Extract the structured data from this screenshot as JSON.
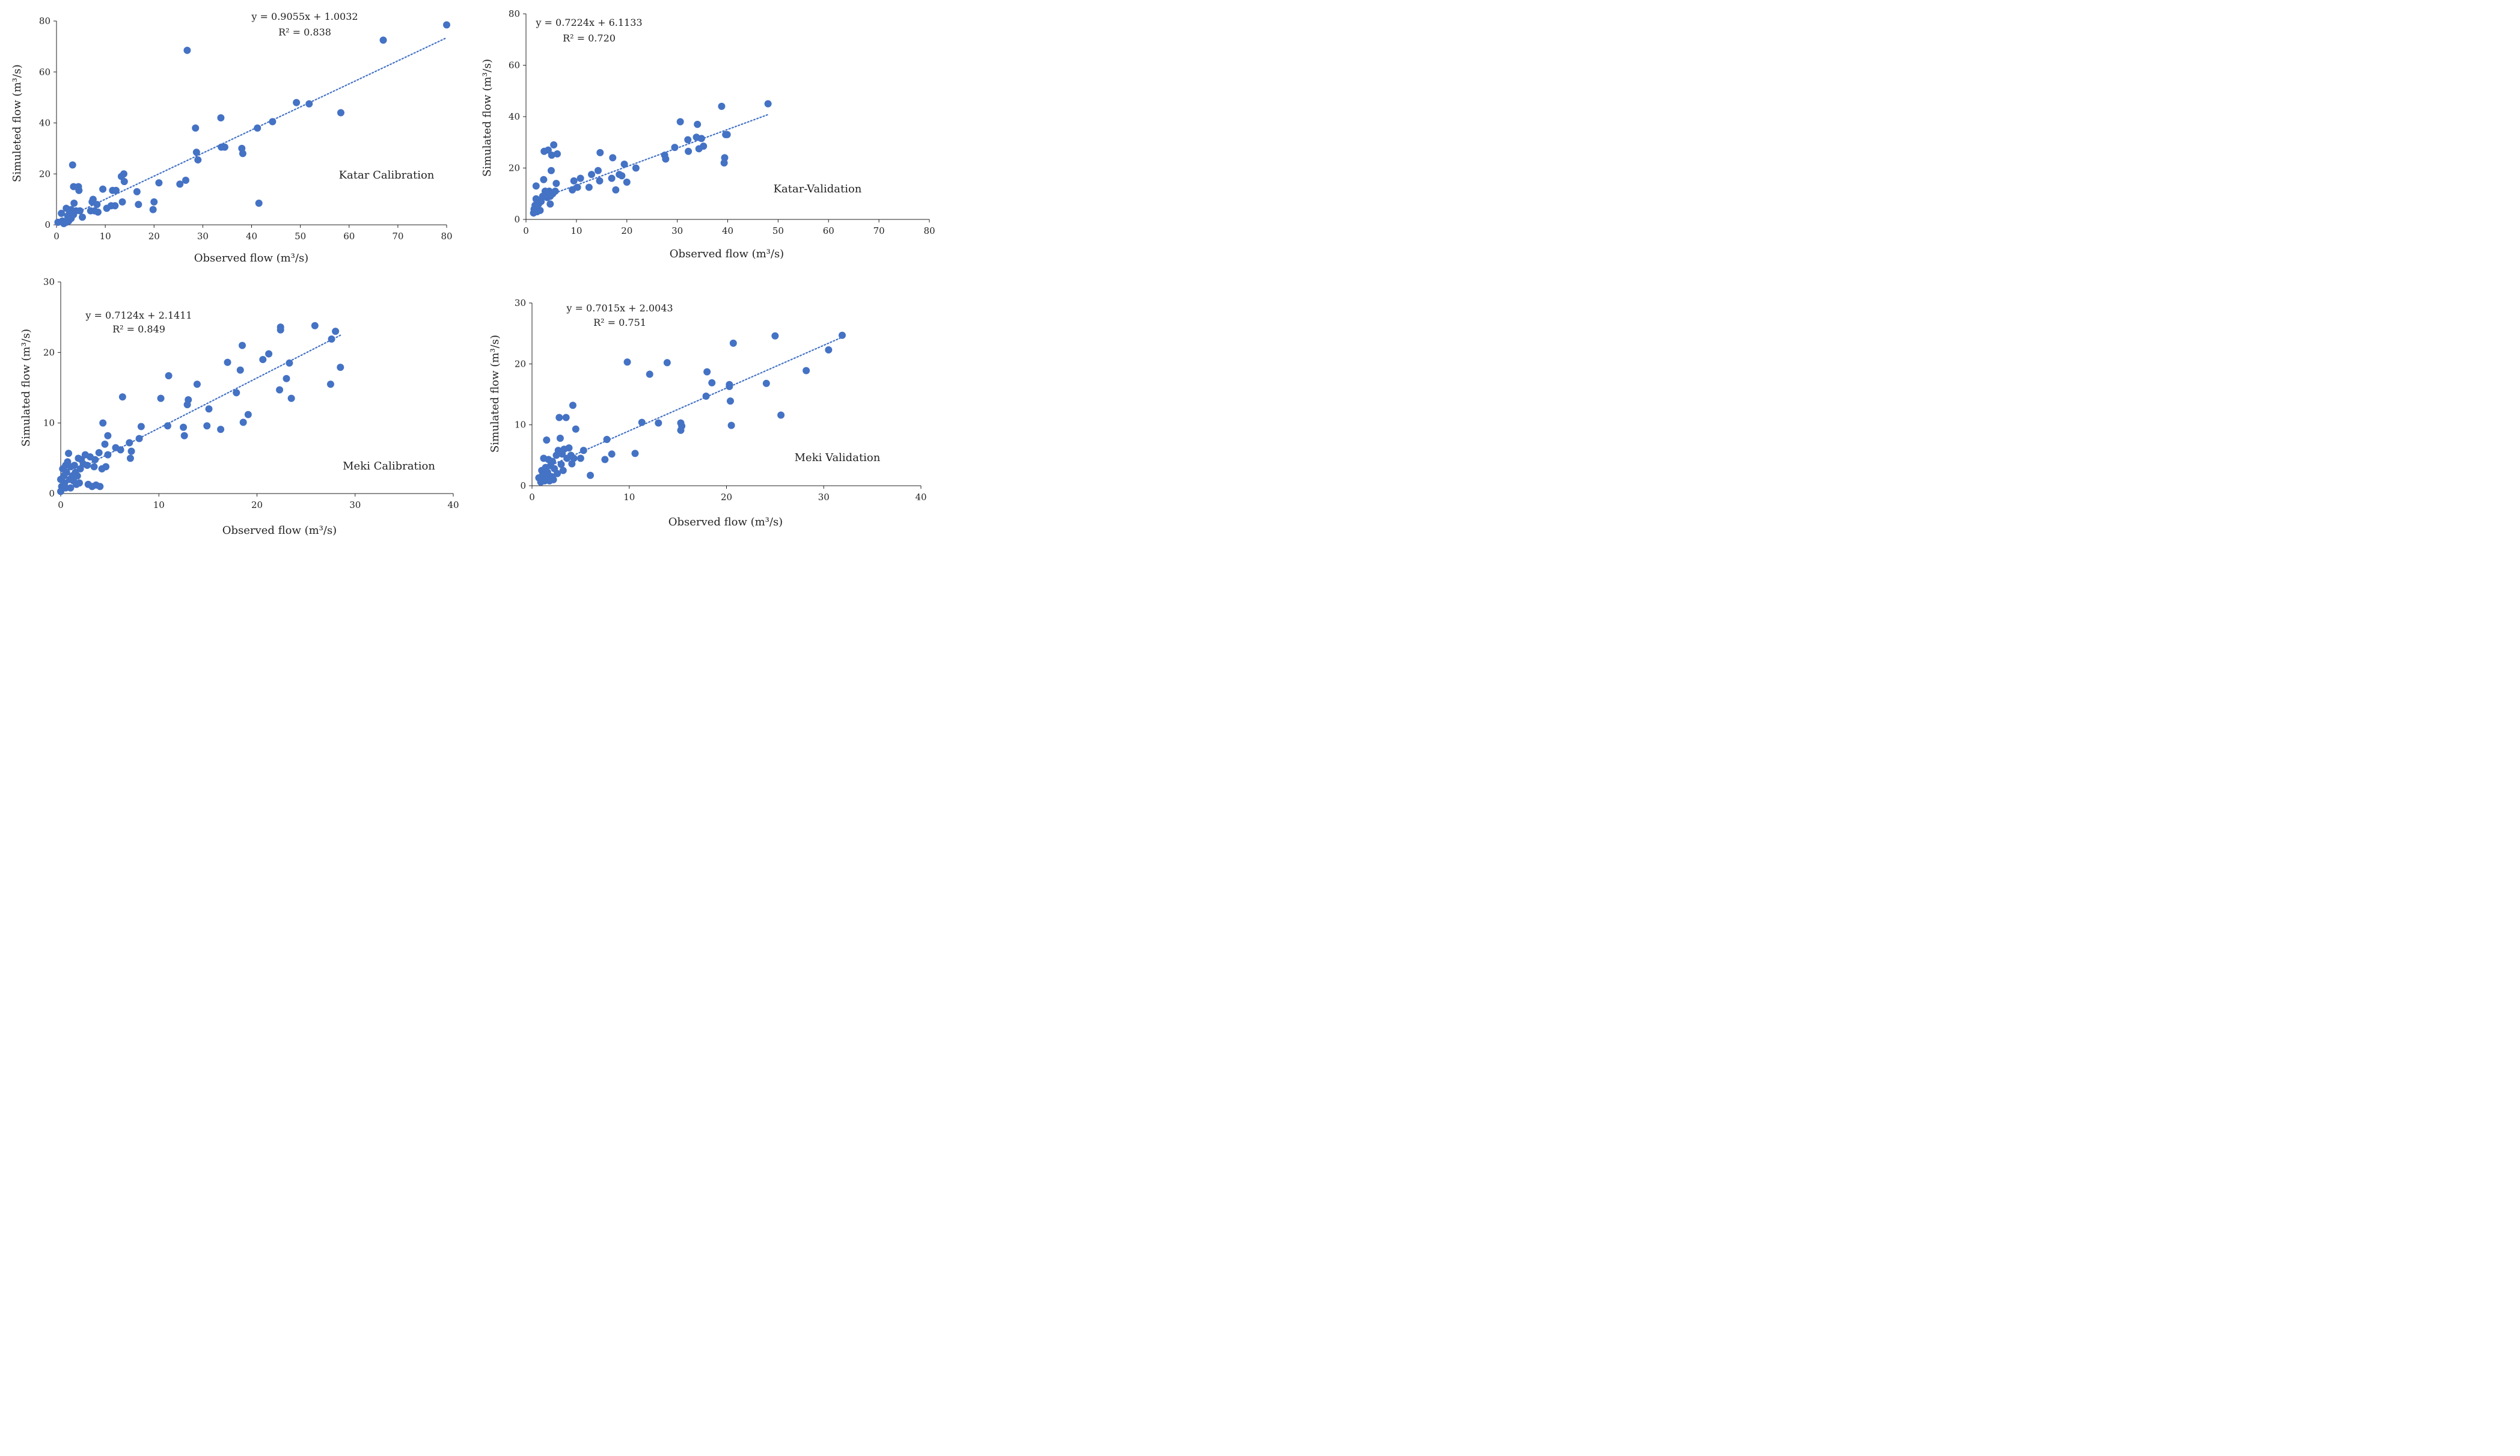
{
  "chart_data": [
    {
      "id": "katar-calibration",
      "type": "scatter",
      "title": "Katar Calibration",
      "xlabel": "Observed flow (m³/s)",
      "ylabel": "Simuleted flow (m³/s)",
      "xlim": [
        0,
        80
      ],
      "ylim": [
        0,
        80
      ],
      "xticks": [
        0,
        10,
        20,
        30,
        40,
        50,
        60,
        70,
        80
      ],
      "yticks": [
        0,
        20,
        40,
        60,
        80
      ],
      "equation": "y = 0.9055x + 1.0032",
      "r2": "R² = 0.838",
      "trendline": {
        "slope": 0.9055,
        "intercept": 1.0032,
        "x_range": [
          1,
          80
        ]
      },
      "points": [
        [
          0.3,
          1
        ],
        [
          1,
          4.5
        ],
        [
          1.2,
          1.5
        ],
        [
          1.5,
          0.5
        ],
        [
          2,
          1
        ],
        [
          2,
          6.5
        ],
        [
          2.3,
          3.5
        ],
        [
          2.5,
          1.5
        ],
        [
          2.7,
          5
        ],
        [
          3,
          2.5
        ],
        [
          3,
          6
        ],
        [
          3.3,
          23.5
        ],
        [
          3.5,
          4
        ],
        [
          3.5,
          15
        ],
        [
          3.6,
          8.5
        ],
        [
          4,
          5.5
        ],
        [
          4.5,
          15
        ],
        [
          4.6,
          13.5
        ],
        [
          4.8,
          5.5
        ],
        [
          5.3,
          3
        ],
        [
          7,
          5.5
        ],
        [
          7.3,
          9
        ],
        [
          7.5,
          10
        ],
        [
          7.8,
          5.5
        ],
        [
          8.3,
          8
        ],
        [
          8.5,
          5
        ],
        [
          9.5,
          14
        ],
        [
          10.3,
          6.5
        ],
        [
          11.2,
          7.5
        ],
        [
          11.5,
          13.5
        ],
        [
          12,
          7.5
        ],
        [
          12.2,
          13.5
        ],
        [
          13.3,
          19
        ],
        [
          13.5,
          9
        ],
        [
          13.8,
          20
        ],
        [
          13.9,
          17
        ],
        [
          16.5,
          13
        ],
        [
          16.8,
          8
        ],
        [
          19.8,
          6
        ],
        [
          20,
          9
        ],
        [
          21,
          16.5
        ],
        [
          25.3,
          16
        ],
        [
          26.5,
          17.5
        ],
        [
          26.8,
          68.5
        ],
        [
          28.5,
          38
        ],
        [
          28.7,
          28.5
        ],
        [
          29,
          25.5
        ],
        [
          33.7,
          42
        ],
        [
          33.8,
          30.5
        ],
        [
          34.5,
          30.5
        ],
        [
          38,
          30
        ],
        [
          38.2,
          28
        ],
        [
          41.2,
          38
        ],
        [
          41.5,
          8.5
        ],
        [
          44.3,
          40.5
        ],
        [
          49.2,
          48
        ],
        [
          51.8,
          47.5
        ],
        [
          58.3,
          44
        ],
        [
          67,
          72.5
        ],
        [
          80,
          78.5
        ]
      ]
    },
    {
      "id": "katar-validation",
      "type": "scatter",
      "title": "Katar-Validation",
      "xlabel": "Observed flow (m³/s)",
      "ylabel": "Simulated flow (m³/s)",
      "xlim": [
        0,
        80
      ],
      "ylim": [
        0,
        80
      ],
      "xticks": [
        0,
        10,
        20,
        30,
        40,
        50,
        60,
        70,
        80
      ],
      "yticks": [
        0,
        20,
        40,
        60,
        80
      ],
      "equation": "y = 0.7224x + 6.1133",
      "r2": "R² = 0.720",
      "trendline": {
        "slope": 0.7224,
        "intercept": 6.1133,
        "x_range": [
          1.5,
          48
        ]
      },
      "points": [
        [
          1.5,
          2.5
        ],
        [
          1.6,
          4
        ],
        [
          1.8,
          5.5
        ],
        [
          2,
          13
        ],
        [
          2,
          8
        ],
        [
          2.2,
          3
        ],
        [
          2.5,
          6
        ],
        [
          2.8,
          3.5
        ],
        [
          3,
          7
        ],
        [
          3.3,
          9
        ],
        [
          3.5,
          15.5
        ],
        [
          3.6,
          26.5
        ],
        [
          3.8,
          11
        ],
        [
          4,
          10
        ],
        [
          4.2,
          8.5
        ],
        [
          4.4,
          27
        ],
        [
          4.6,
          11
        ],
        [
          4.8,
          9
        ],
        [
          5,
          19
        ],
        [
          5.1,
          25
        ],
        [
          5.3,
          10
        ],
        [
          5.5,
          29
        ],
        [
          5.8,
          11
        ],
        [
          6,
          14
        ],
        [
          6.2,
          25.5
        ],
        [
          4.8,
          6
        ],
        [
          9.2,
          11.5
        ],
        [
          9.5,
          15
        ],
        [
          10.2,
          12.5
        ],
        [
          10.8,
          16
        ],
        [
          12.5,
          12.5
        ],
        [
          13,
          17.5
        ],
        [
          14.3,
          19
        ],
        [
          14.6,
          15
        ],
        [
          14.7,
          26
        ],
        [
          17,
          16
        ],
        [
          17.2,
          24
        ],
        [
          17.8,
          11.5
        ],
        [
          18.5,
          17.5
        ],
        [
          19,
          17
        ],
        [
          19.5,
          21.5
        ],
        [
          20,
          14.5
        ],
        [
          21.8,
          20
        ],
        [
          27.5,
          25
        ],
        [
          27.7,
          23.5
        ],
        [
          29.5,
          28
        ],
        [
          30.6,
          38
        ],
        [
          32.1,
          31
        ],
        [
          32.2,
          26.5
        ],
        [
          33.8,
          32
        ],
        [
          34,
          37
        ],
        [
          34.3,
          27.5
        ],
        [
          34.8,
          31.5
        ],
        [
          35.2,
          28.5
        ],
        [
          38.8,
          44
        ],
        [
          39.3,
          22
        ],
        [
          39.4,
          24
        ],
        [
          39.6,
          33
        ],
        [
          39.9,
          33
        ],
        [
          48,
          45
        ]
      ]
    },
    {
      "id": "meki-calibration",
      "type": "scatter",
      "title": "Meki Calibration",
      "xlabel": "Observed flow (m³/s)",
      "ylabel": "Simulated flow (m³/s)",
      "xlim": [
        0,
        40
      ],
      "ylim": [
        0,
        30
      ],
      "xticks": [
        0,
        10,
        20,
        30,
        40
      ],
      "yticks": [
        0,
        10,
        20,
        30
      ],
      "equation": "y = 0.7124x + 2.1411",
      "r2": "R² = 0.849",
      "trendline": {
        "slope": 0.7124,
        "intercept": 2.1411,
        "x_range": [
          0.2,
          28.5
        ]
      },
      "points": [
        [
          0,
          0.3
        ],
        [
          0,
          2
        ],
        [
          0.1,
          1
        ],
        [
          0.2,
          3.5
        ],
        [
          0.3,
          2.5
        ],
        [
          0.4,
          1.5
        ],
        [
          0.5,
          4
        ],
        [
          0.5,
          0.8
        ],
        [
          0.6,
          3
        ],
        [
          0.7,
          4.5
        ],
        [
          0.8,
          5.7
        ],
        [
          0.9,
          2
        ],
        [
          1,
          0.8
        ],
        [
          1,
          3.8
        ],
        [
          1.2,
          2.5
        ],
        [
          1.3,
          1.8
        ],
        [
          1.4,
          4
        ],
        [
          1.5,
          3
        ],
        [
          1.6,
          1.3
        ],
        [
          1.7,
          2.5
        ],
        [
          1.8,
          5
        ],
        [
          1.9,
          1.5
        ],
        [
          2,
          3.5
        ],
        [
          2.1,
          4.8
        ],
        [
          2.3,
          4.2
        ],
        [
          2.5,
          5.5
        ],
        [
          2.7,
          4
        ],
        [
          2.8,
          1.3
        ],
        [
          3,
          5.2
        ],
        [
          3.2,
          1
        ],
        [
          3.4,
          3.8
        ],
        [
          3.5,
          4.8
        ],
        [
          3.6,
          1.2
        ],
        [
          3.9,
          5.8
        ],
        [
          4,
          1
        ],
        [
          4.2,
          3.5
        ],
        [
          4.3,
          10
        ],
        [
          4.5,
          7
        ],
        [
          4.6,
          3.8
        ],
        [
          4.8,
          8.2
        ],
        [
          4.8,
          5.5
        ],
        [
          5.6,
          6.5
        ],
        [
          6.1,
          6.2
        ],
        [
          6.3,
          13.7
        ],
        [
          7,
          7.2
        ],
        [
          7.1,
          5
        ],
        [
          7.2,
          6
        ],
        [
          8,
          7.8
        ],
        [
          8.2,
          9.5
        ],
        [
          10.2,
          13.5
        ],
        [
          10.9,
          9.6
        ],
        [
          11,
          16.7
        ],
        [
          12.5,
          9.4
        ],
        [
          12.6,
          8.2
        ],
        [
          12.9,
          12.6
        ],
        [
          13,
          13.3
        ],
        [
          13.9,
          15.5
        ],
        [
          14.9,
          9.6
        ],
        [
          15.1,
          12
        ],
        [
          16.3,
          9.1
        ],
        [
          17,
          18.6
        ],
        [
          17.9,
          14.3
        ],
        [
          18.3,
          17.5
        ],
        [
          18.5,
          21
        ],
        [
          18.6,
          10.1
        ],
        [
          19.1,
          11.2
        ],
        [
          20.6,
          19
        ],
        [
          21.2,
          19.8
        ],
        [
          22.3,
          14.7
        ],
        [
          22.4,
          23.2
        ],
        [
          22.4,
          23.6
        ],
        [
          23,
          16.3
        ],
        [
          23.3,
          18.5
        ],
        [
          23.5,
          13.5
        ],
        [
          25.9,
          23.8
        ],
        [
          27.5,
          15.5
        ],
        [
          27.6,
          21.9
        ],
        [
          28,
          23
        ],
        [
          28.5,
          17.9
        ]
      ]
    },
    {
      "id": "meki-validation",
      "type": "scatter",
      "title": "Meki Validation",
      "xlabel": "Observed flow (m³/s)",
      "ylabel": "Simulated flow (m³/s)",
      "xlim": [
        0,
        40
      ],
      "ylim": [
        0,
        30
      ],
      "xticks": [
        0,
        10,
        20,
        30,
        40
      ],
      "yticks": [
        0,
        10,
        20,
        30
      ],
      "equation": "y = 0.7015x + 2.0043",
      "r2": "R² = 0.751",
      "trendline": {
        "slope": 0.7015,
        "intercept": 2.0043,
        "x_range": [
          0.8,
          32
        ]
      },
      "points": [
        [
          0.7,
          1.3
        ],
        [
          0.9,
          0.6
        ],
        [
          1,
          2.5
        ],
        [
          1.1,
          1.8
        ],
        [
          1.2,
          4.5
        ],
        [
          1.3,
          0.8
        ],
        [
          1.4,
          3
        ],
        [
          1.5,
          7.5
        ],
        [
          1.5,
          1.5
        ],
        [
          1.6,
          2.2
        ],
        [
          1.7,
          4.3
        ],
        [
          1.8,
          0.8
        ],
        [
          1.9,
          3.3
        ],
        [
          2,
          1.5
        ],
        [
          2.1,
          4
        ],
        [
          2.2,
          1
        ],
        [
          2.3,
          2.8
        ],
        [
          2.5,
          5
        ],
        [
          2.6,
          2
        ],
        [
          2.7,
          5.8
        ],
        [
          2.8,
          11.2
        ],
        [
          2.9,
          7.8
        ],
        [
          3,
          3.5
        ],
        [
          3.1,
          5.2
        ],
        [
          3.2,
          2.5
        ],
        [
          3.3,
          6
        ],
        [
          3.5,
          11.2
        ],
        [
          3.6,
          4.5
        ],
        [
          3.8,
          6.2
        ],
        [
          4,
          5
        ],
        [
          4.1,
          3.6
        ],
        [
          4.2,
          13.2
        ],
        [
          4.3,
          4.5
        ],
        [
          4.5,
          9.3
        ],
        [
          5,
          4.5
        ],
        [
          5.3,
          5.8
        ],
        [
          6,
          1.7
        ],
        [
          7.5,
          4.3
        ],
        [
          7.7,
          7.6
        ],
        [
          8.2,
          5.2
        ],
        [
          9.8,
          20.3
        ],
        [
          10.6,
          5.3
        ],
        [
          11.3,
          10.4
        ],
        [
          12.1,
          18.3
        ],
        [
          13,
          10.3
        ],
        [
          13.9,
          20.2
        ],
        [
          15.3,
          10.3
        ],
        [
          15.3,
          9.1
        ],
        [
          15.4,
          9.8
        ],
        [
          17.9,
          14.7
        ],
        [
          18,
          18.7
        ],
        [
          18.5,
          16.9
        ],
        [
          20.3,
          16.6
        ],
        [
          20.3,
          16.3
        ],
        [
          20.4,
          13.9
        ],
        [
          20.5,
          9.9
        ],
        [
          20.7,
          23.4
        ],
        [
          24.1,
          16.8
        ],
        [
          25,
          24.6
        ],
        [
          25.6,
          11.6
        ],
        [
          28.2,
          18.9
        ],
        [
          30.5,
          22.3
        ],
        [
          31.9,
          24.7
        ]
      ]
    }
  ],
  "colors": {
    "marker": "#4472c4",
    "trend": "#4472c4",
    "axis": "#222222"
  }
}
